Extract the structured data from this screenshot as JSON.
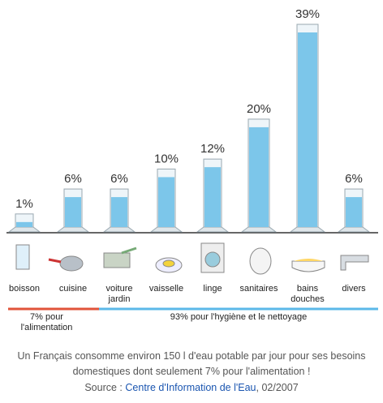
{
  "chart_data": {
    "type": "cylinder",
    "categories": [
      "boisson",
      "cuisine",
      "voiture jardin",
      "vaisselle",
      "linge",
      "sanitaires",
      "bains douches",
      "divers"
    ],
    "values": [
      1,
      6,
      6,
      10,
      12,
      20,
      39,
      6
    ],
    "value_labels": [
      "1%",
      "6%",
      "6%",
      "10%",
      "12%",
      "20%",
      "39%",
      "6%"
    ],
    "color": "#7cc6ea",
    "groups": [
      {
        "label": "7% pour l'alimentation",
        "color": "#e0533a"
      },
      {
        "label": "93% pour l'hygiène et le nettoyage",
        "color": "#5bb8e8"
      }
    ],
    "caption": "Un Français consomme environ 150 l d'eau potable par jour pour ses besoins domestiques dont seulement 7% pour l'alimentation !",
    "source_prefix": "Source :",
    "source_link": "Centre d'Information de l'Eau",
    "source_suffix": ", 02/2007"
  }
}
